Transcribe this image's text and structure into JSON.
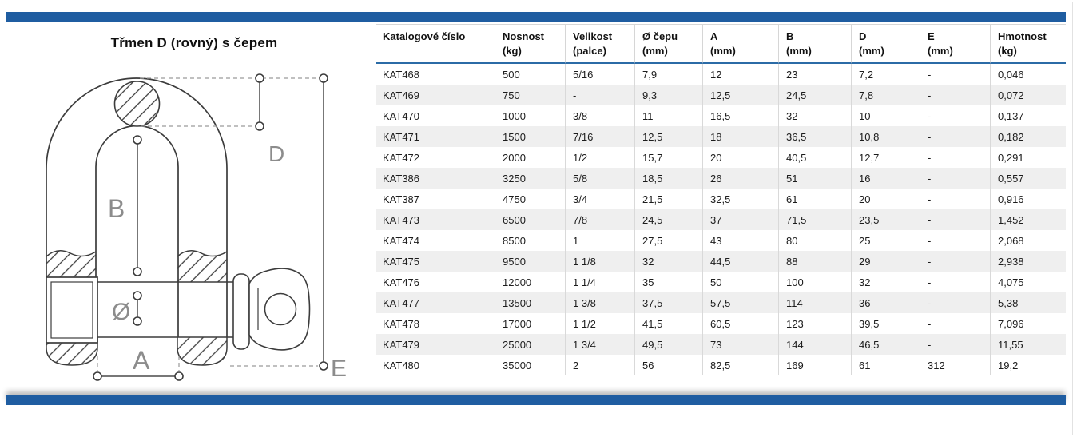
{
  "page": {
    "title": "Třmen D (rovný) s čepem"
  },
  "diagram": {
    "name": "d-shackle-technical-drawing",
    "labels": {
      "d": "D",
      "b": "B",
      "diameter": "Ø",
      "a": "A",
      "e": "E"
    }
  },
  "colors": {
    "accent_bar": "#1f5da1",
    "header_underline": "#2b6ba6",
    "row_stripe": "#efefef",
    "grid_line": "#d9d9d9"
  },
  "table": {
    "columns": [
      {
        "label": "Katalogové číslo",
        "sub": ""
      },
      {
        "label": "Nosnost",
        "sub": "(kg)"
      },
      {
        "label": "Velikost",
        "sub": "(palce)"
      },
      {
        "label": "Ø čepu",
        "sub": "(mm)"
      },
      {
        "label": "A",
        "sub": "(mm)"
      },
      {
        "label": "B",
        "sub": "(mm)"
      },
      {
        "label": "D",
        "sub": "(mm)"
      },
      {
        "label": "E",
        "sub": "(mm)"
      },
      {
        "label": "Hmotnost",
        "sub": "(kg)"
      }
    ],
    "rows": [
      [
        "KAT468",
        "500",
        "5/16",
        "7,9",
        "12",
        "23",
        "7,2",
        "-",
        "0,046"
      ],
      [
        "KAT469",
        "750",
        "-",
        "9,3",
        "12,5",
        "24,5",
        "7,8",
        "-",
        "0,072"
      ],
      [
        "KAT470",
        "1000",
        "3/8",
        "11",
        "16,5",
        "32",
        "10",
        "-",
        "0,137"
      ],
      [
        "KAT471",
        "1500",
        "7/16",
        "12,5",
        "18",
        "36,5",
        "10,8",
        "-",
        "0,182"
      ],
      [
        "KAT472",
        "2000",
        "1/2",
        "15,7",
        "20",
        "40,5",
        "12,7",
        "-",
        "0,291"
      ],
      [
        "KAT386",
        "3250",
        "5/8",
        "18,5",
        "26",
        "51",
        "16",
        "-",
        "0,557"
      ],
      [
        "KAT387",
        "4750",
        "3/4",
        "21,5",
        "32,5",
        "61",
        "20",
        "-",
        "0,916"
      ],
      [
        "KAT473",
        "6500",
        "7/8",
        "24,5",
        "37",
        "71,5",
        "23,5",
        "-",
        "1,452"
      ],
      [
        "KAT474",
        "8500",
        "1",
        "27,5",
        "43",
        "80",
        "25",
        "-",
        "2,068"
      ],
      [
        "KAT475",
        "9500",
        "1 1/8",
        "32",
        "44,5",
        "88",
        "29",
        "-",
        "2,938"
      ],
      [
        "KAT476",
        "12000",
        "1 1/4",
        "35",
        "50",
        "100",
        "32",
        "-",
        "4,075"
      ],
      [
        "KAT477",
        "13500",
        "1 3/8",
        "37,5",
        "57,5",
        "114",
        "36",
        "-",
        "5,38"
      ],
      [
        "KAT478",
        "17000",
        "1 1/2",
        "41,5",
        "60,5",
        "123",
        "39,5",
        "-",
        "7,096"
      ],
      [
        "KAT479",
        "25000",
        "1 3/4",
        "49,5",
        "73",
        "144",
        "46,5",
        "-",
        "11,55"
      ],
      [
        "KAT480",
        "35000",
        "2",
        "56",
        "82,5",
        "169",
        "61",
        "312",
        "19,2"
      ]
    ]
  }
}
